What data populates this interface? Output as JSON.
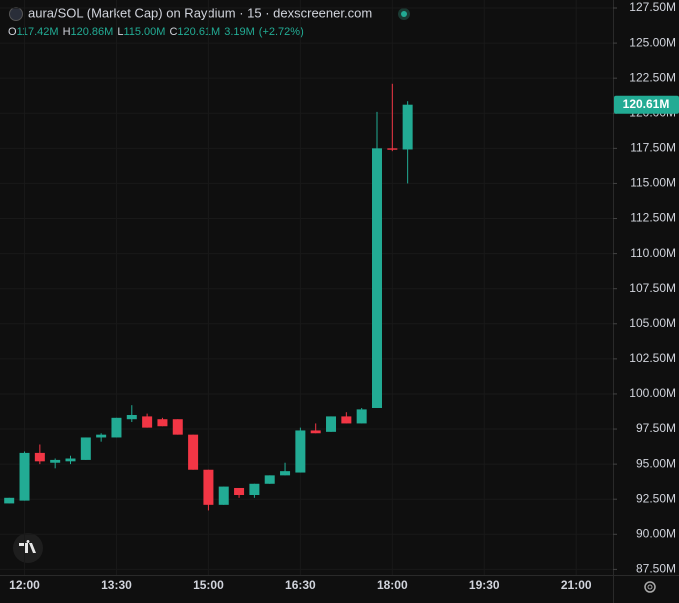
{
  "header": {
    "title": "aura/SOL (Market Cap) on Raydium · 15 · dexscreener.com",
    "ohlc": [
      {
        "label": "O",
        "value": "117.42M"
      },
      {
        "label": "H",
        "value": "120.86M"
      },
      {
        "label": "L",
        "value": "115.00M"
      },
      {
        "label": "C",
        "value": "120.61M"
      }
    ],
    "change": "3.19M",
    "change_pct": "(+2.72%)"
  },
  "chart_data": {
    "type": "candlestick",
    "x": [
      "11:45",
      "12:00",
      "12:15",
      "12:30",
      "12:45",
      "13:00",
      "13:15",
      "13:30",
      "13:45",
      "14:00",
      "14:15",
      "14:30",
      "14:45",
      "15:00",
      "15:15",
      "15:30",
      "15:45",
      "16:00",
      "16:15",
      "16:30",
      "16:45",
      "17:00",
      "17:15",
      "17:30",
      "17:45",
      "18:00",
      "18:15"
    ],
    "open": [
      92.2,
      92.4,
      95.8,
      95.1,
      95.2,
      95.3,
      96.9,
      96.9,
      98.2,
      98.4,
      98.2,
      98.2,
      97.1,
      94.6,
      92.1,
      93.3,
      92.8,
      93.6,
      94.2,
      94.4,
      97.4,
      97.3,
      98.4,
      97.9,
      99.0,
      117.5,
      117.42
    ],
    "high": [
      92.6,
      95.9,
      96.4,
      95.4,
      95.6,
      96.9,
      97.2,
      98.3,
      99.2,
      98.6,
      98.3,
      98.2,
      97.1,
      94.6,
      93.4,
      93.3,
      93.6,
      94.2,
      95.1,
      97.6,
      97.9,
      98.4,
      98.7,
      99.0,
      120.1,
      122.1,
      120.86
    ],
    "low": [
      92.2,
      92.4,
      95.0,
      94.7,
      95.0,
      95.3,
      96.6,
      96.9,
      98.0,
      97.6,
      97.7,
      97.1,
      94.6,
      91.7,
      92.1,
      92.6,
      92.6,
      93.6,
      94.2,
      94.4,
      97.2,
      97.3,
      97.9,
      97.9,
      99.0,
      117.3,
      115.0
    ],
    "close": [
      92.6,
      95.8,
      95.2,
      95.3,
      95.4,
      96.9,
      97.1,
      98.3,
      98.5,
      97.6,
      97.7,
      97.1,
      94.6,
      92.1,
      93.4,
      92.8,
      93.6,
      94.2,
      94.5,
      97.4,
      97.2,
      98.4,
      97.9,
      98.9,
      117.5,
      117.4,
      120.61
    ],
    "last_label": "120.61M",
    "up_color": "#22ab94",
    "down_color": "#f23645",
    "xlim": [
      "11:36",
      "21:36"
    ],
    "xticks": [
      "12:00",
      "13:30",
      "15:00",
      "16:30",
      "18:00",
      "19:30",
      "21:00"
    ],
    "ylim": [
      87.1,
      128.07
    ],
    "yticks": [
      {
        "value": 87.5,
        "label": "87.50M"
      },
      {
        "value": 90,
        "label": "90.00M"
      },
      {
        "value": 92.5,
        "label": "92.50M"
      },
      {
        "value": 95,
        "label": "95.00M"
      },
      {
        "value": 97.5,
        "label": "97.50M"
      },
      {
        "value": 100,
        "label": "100.00M"
      },
      {
        "value": 102.5,
        "label": "102.50M"
      },
      {
        "value": 105,
        "label": "105.00M"
      },
      {
        "value": 107.5,
        "label": "107.50M"
      },
      {
        "value": 110,
        "label": "110.00M"
      },
      {
        "value": 112.5,
        "label": "112.50M"
      },
      {
        "value": 115,
        "label": "115.00M"
      },
      {
        "value": 117.5,
        "label": "117.50M"
      },
      {
        "value": 120,
        "label": "120.00M"
      },
      {
        "value": 122.5,
        "label": "122.50M"
      },
      {
        "value": 125,
        "label": "125.00M"
      },
      {
        "value": 127.5,
        "label": "127.50M"
      }
    ],
    "grid": true
  }
}
